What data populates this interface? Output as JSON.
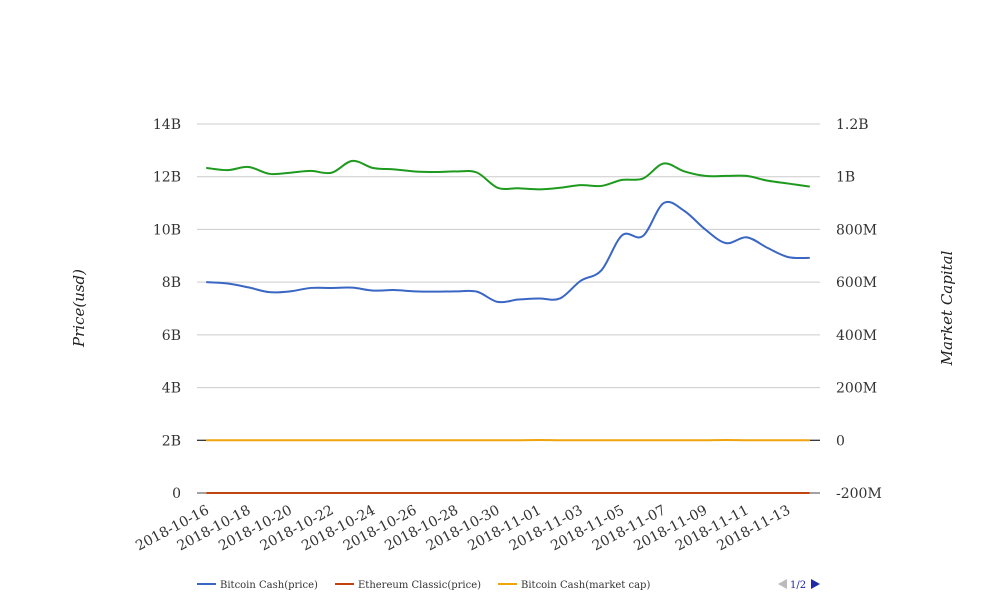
{
  "chart_data": {
    "type": "line",
    "title": "",
    "x": [
      "2018-10-16",
      "2018-10-17",
      "2018-10-18",
      "2018-10-19",
      "2018-10-20",
      "2018-10-21",
      "2018-10-22",
      "2018-10-23",
      "2018-10-24",
      "2018-10-25",
      "2018-10-26",
      "2018-10-27",
      "2018-10-28",
      "2018-10-29",
      "2018-10-30",
      "2018-10-31",
      "2018-11-01",
      "2018-11-02",
      "2018-11-03",
      "2018-11-04",
      "2018-11-05",
      "2018-11-06",
      "2018-11-07",
      "2018-11-08",
      "2018-11-09",
      "2018-11-10",
      "2018-11-11",
      "2018-11-12",
      "2018-11-13",
      "2018-11-14"
    ],
    "x_tick_labels": [
      "2018-10-16",
      "2018-10-18",
      "2018-10-20",
      "2018-10-22",
      "2018-10-24",
      "2018-10-26",
      "2018-10-28",
      "2018-10-30",
      "2018-11-01",
      "2018-11-03",
      "2018-11-05",
      "2018-11-07",
      "2018-11-09",
      "2018-11-11",
      "2018-11-13"
    ],
    "ylabel_left": "Price(usd)",
    "ylabel_right": "Market Capital",
    "y_left": {
      "min": 0,
      "max": 14000000000,
      "ticks": [
        0,
        2000000000,
        4000000000,
        6000000000,
        8000000000,
        10000000000,
        12000000000,
        14000000000
      ],
      "tick_labels": [
        "0",
        "2B",
        "4B",
        "6B",
        "8B",
        "10B",
        "12B",
        "14B"
      ]
    },
    "y_right": {
      "min": -200000000,
      "max": 1200000000,
      "ticks": [
        -200000000,
        0,
        200000000,
        400000000,
        600000000,
        800000000,
        1000000000,
        1200000000
      ],
      "tick_labels": [
        "-200M",
        "0",
        "200M",
        "400M",
        "600M",
        "800M",
        "1B",
        "1.2B"
      ]
    },
    "grid": true,
    "series": [
      {
        "name": "Bitcoin Cash(price)",
        "axis": "left",
        "color": "#3a66c4",
        "values": [
          8000000000,
          7950000000,
          7800000000,
          7620000000,
          7650000000,
          7780000000,
          7780000000,
          7790000000,
          7680000000,
          7700000000,
          7650000000,
          7640000000,
          7650000000,
          7640000000,
          7250000000,
          7340000000,
          7380000000,
          7380000000,
          8050000000,
          8450000000,
          9780000000,
          9750000000,
          11000000000,
          10700000000,
          10000000000,
          9480000000,
          9700000000,
          9300000000,
          8950000000,
          8920000000
        ]
      },
      {
        "name": "Ethereum Classic(price)",
        "axis": "left",
        "color": "#c1440e",
        "values": [
          10,
          10,
          10,
          10,
          10,
          10,
          10,
          10,
          10,
          10,
          10,
          10,
          10,
          10,
          10,
          10,
          10,
          10,
          10,
          10,
          10,
          10,
          10,
          10,
          10,
          10,
          10,
          10,
          10,
          10
        ]
      },
      {
        "name": "Bitcoin Cash(market cap)",
        "axis": "right",
        "color": "#f0a30a",
        "values": [
          0,
          0,
          0,
          0,
          0,
          0,
          0,
          0,
          0,
          0,
          0,
          0,
          0,
          0,
          0,
          0,
          1000000,
          0,
          0,
          0,
          0,
          0,
          0,
          0,
          0,
          1000000,
          0,
          0,
          0,
          0
        ]
      },
      {
        "name": "",
        "axis": "left",
        "color": "#1e9a1e",
        "values": [
          12330000000,
          12250000000,
          12370000000,
          12110000000,
          12150000000,
          12220000000,
          12150000000,
          12600000000,
          12330000000,
          12280000000,
          12200000000,
          12180000000,
          12200000000,
          12160000000,
          11580000000,
          11560000000,
          11520000000,
          11580000000,
          11680000000,
          11650000000,
          11880000000,
          11930000000,
          12500000000,
          12200000000,
          12030000000,
          12030000000,
          12030000000,
          11850000000,
          11740000000,
          11630000000
        ]
      }
    ],
    "legend": {
      "placement": "bottom-left",
      "page_indicator": "1/2"
    }
  },
  "colors": {
    "grid": "#cccccc",
    "zero_line": "#000000",
    "pager_active": "#1f2ba8",
    "pager_inactive": "#bbbbbb"
  },
  "icons": {
    "prev": "triangle-left-icon",
    "next": "triangle-right-icon"
  }
}
